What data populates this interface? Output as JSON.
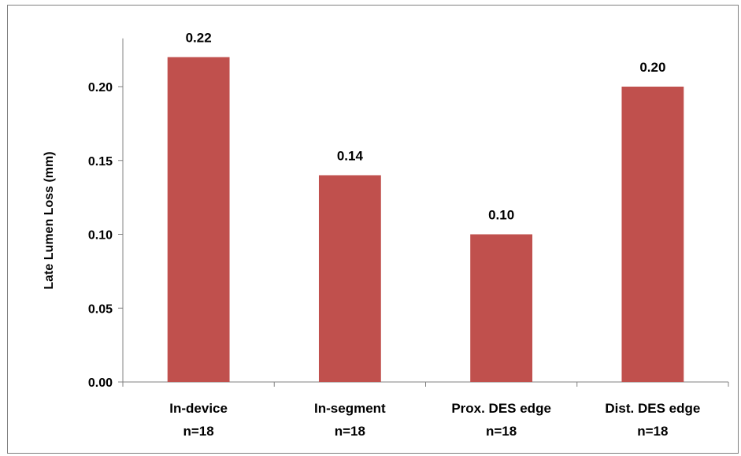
{
  "chart_data": {
    "type": "bar",
    "categories": [
      [
        "In-device",
        "n=18"
      ],
      [
        "In-segment",
        "n=18"
      ],
      [
        "Prox. DES edge",
        "n=18"
      ],
      [
        "Dist. DES edge",
        "n=18"
      ]
    ],
    "values": [
      0.22,
      0.14,
      0.1,
      0.2
    ],
    "data_labels": [
      "0.22",
      "0.14",
      "0.10",
      "0.20"
    ],
    "title": "",
    "xlabel": "",
    "ylabel": "Late Lumen Loss (mm)",
    "ylim": [
      0,
      0.23
    ],
    "yticks": [
      0.0,
      0.05,
      0.1,
      0.15,
      0.2
    ],
    "ytick_labels": [
      "0.00",
      "0.05",
      "0.10",
      "0.15",
      "0.20"
    ],
    "grid": false,
    "legend": "none",
    "bar_color": "#c0504d"
  }
}
